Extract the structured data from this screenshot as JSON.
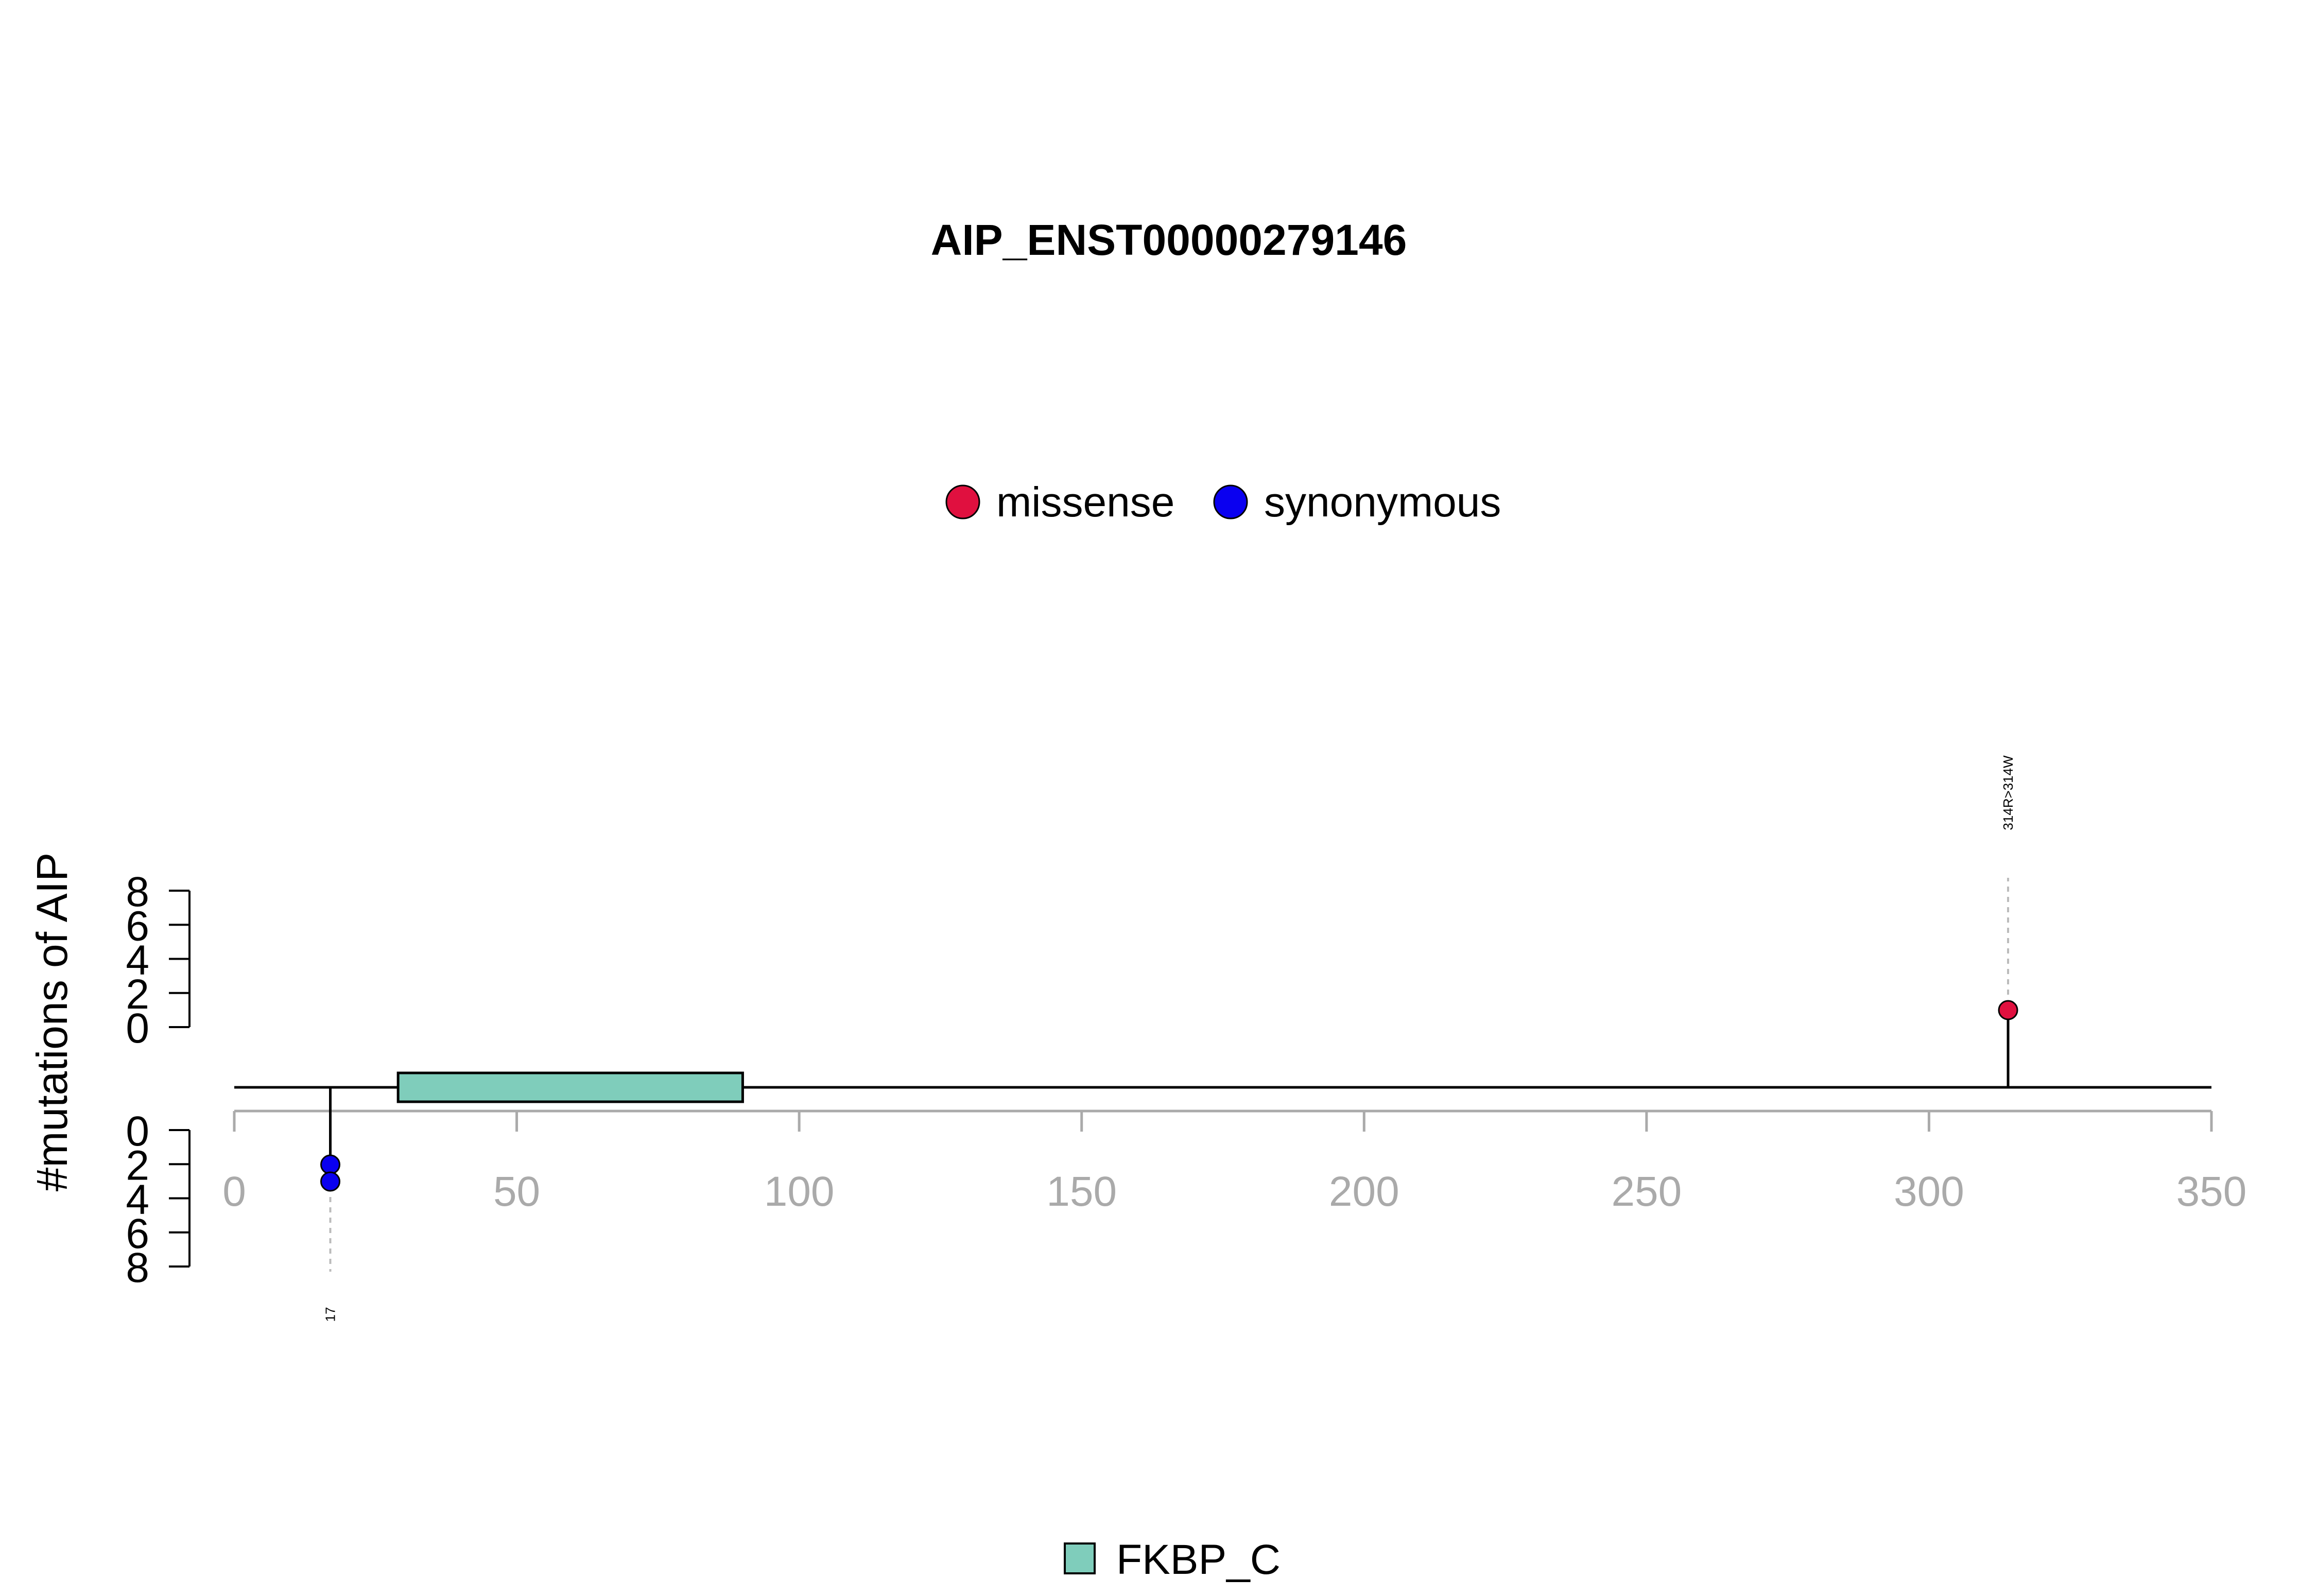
{
  "chart_data": {
    "type": "lollipop",
    "title": "AIP_ENST00000279146",
    "ylabel": "#mutations of AIP",
    "xlim": [
      0,
      350
    ],
    "x_ticks": [
      "0",
      "50",
      "100",
      "150",
      "200",
      "250",
      "300",
      "350"
    ],
    "y_ticks_top": [
      "0",
      "2",
      "4",
      "6",
      "8"
    ],
    "y_ticks_bottom": [
      "0",
      "2",
      "4",
      "6",
      "8"
    ],
    "ylim": [
      0,
      8
    ],
    "legend_mutations": [
      {
        "name": "missense",
        "color": "#e0103f"
      },
      {
        "name": "synonymous",
        "color": "#0a00f0"
      }
    ],
    "mutations": [
      {
        "position": 314,
        "label": "314R>314W",
        "side": "top",
        "count": 1,
        "type": "missense"
      },
      {
        "position": 17,
        "label": "17",
        "side": "bottom",
        "count": 2,
        "type": "synonymous"
      }
    ],
    "domains": [
      {
        "name": "FKBP_C",
        "start": 29,
        "end": 90,
        "color": "#7fcdbb"
      }
    ],
    "legend_domains": [
      {
        "name": "FKBP_C",
        "color": "#7fcdbb"
      }
    ]
  }
}
